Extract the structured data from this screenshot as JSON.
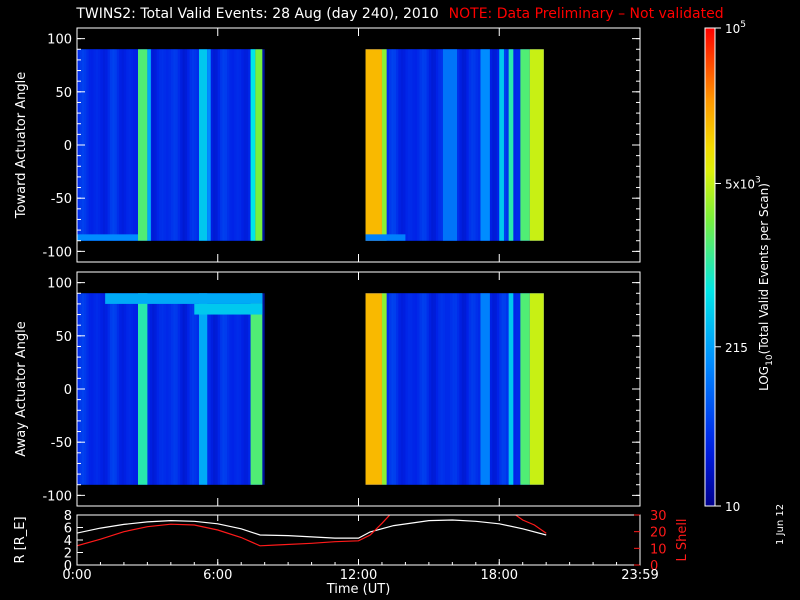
{
  "title": {
    "main": "TWINS2: Total Valid Events: 28 Aug (day 240), 2010",
    "note": "NOTE: Data Preliminary – Not validated"
  },
  "stamp": "1 Jun 12",
  "colors": {
    "background": "#000000",
    "axis": "#ffffff",
    "note": "#ff0000",
    "lshell": "#ff1a1a",
    "radius": "#ffffff"
  },
  "chart_data": [
    {
      "type": "heatmap",
      "panel": "top",
      "ylabel": "Toward Actuator Angle",
      "xlim": [
        0,
        24
      ],
      "ylim": [
        -110,
        110
      ],
      "yticks": [
        100,
        50,
        0,
        -50,
        -100
      ],
      "data_extent": {
        "x": [
          [
            0,
            7.9
          ],
          [
            12.3,
            19.9
          ]
        ],
        "y": [
          -90,
          90
        ]
      },
      "base_level": 0.14,
      "stripes": [
        {
          "x0": 2.6,
          "x1": 3.0,
          "level": 0.55
        },
        {
          "x0": 3.0,
          "x1": 3.15,
          "level": 0.35
        },
        {
          "x0": 5.2,
          "x1": 5.55,
          "level": 0.4
        },
        {
          "x0": 5.55,
          "x1": 5.7,
          "level": 0.3
        },
        {
          "x0": 7.4,
          "x1": 7.6,
          "level": 0.45
        },
        {
          "x0": 7.6,
          "x1": 7.9,
          "level": 0.6
        },
        {
          "x0": 12.3,
          "x1": 13.0,
          "level": 0.8
        },
        {
          "x0": 13.0,
          "x1": 13.2,
          "level": 0.62
        },
        {
          "x0": 15.6,
          "x1": 16.2,
          "level": 0.26
        },
        {
          "x0": 17.2,
          "x1": 17.6,
          "level": 0.3
        },
        {
          "x0": 18.0,
          "x1": 18.2,
          "level": 0.4
        },
        {
          "x0": 18.4,
          "x1": 18.6,
          "level": 0.5
        },
        {
          "x0": 18.9,
          "x1": 19.3,
          "level": 0.55
        },
        {
          "x0": 19.3,
          "x1": 19.9,
          "level": 0.68
        }
      ],
      "bands": [
        {
          "y0": -90,
          "y1": -84,
          "x0": 0,
          "x1": 2.6,
          "level": 0.3
        },
        {
          "y0": -90,
          "y1": -84,
          "x0": 12.3,
          "x1": 14.0,
          "level": 0.28
        }
      ]
    },
    {
      "type": "heatmap",
      "panel": "middle",
      "ylabel": "Away Actuator Angle",
      "xlim": [
        0,
        24
      ],
      "ylim": [
        -110,
        110
      ],
      "yticks": [
        100,
        50,
        0,
        -50,
        -100
      ],
      "data_extent": {
        "x": [
          [
            0,
            7.9
          ],
          [
            12.3,
            19.9
          ]
        ],
        "y": [
          -90,
          90
        ]
      },
      "base_level": 0.14,
      "stripes": [
        {
          "x0": 2.6,
          "x1": 3.0,
          "level": 0.5
        },
        {
          "x0": 5.2,
          "x1": 5.55,
          "level": 0.35
        },
        {
          "x0": 7.4,
          "x1": 7.9,
          "level": 0.55
        },
        {
          "x0": 12.3,
          "x1": 13.0,
          "level": 0.8
        },
        {
          "x0": 13.0,
          "x1": 13.2,
          "level": 0.62
        },
        {
          "x0": 17.2,
          "x1": 17.6,
          "level": 0.28
        },
        {
          "x0": 18.4,
          "x1": 18.6,
          "level": 0.4
        },
        {
          "x0": 18.9,
          "x1": 19.3,
          "level": 0.55
        },
        {
          "x0": 19.3,
          "x1": 19.9,
          "level": 0.68
        }
      ],
      "bands": [
        {
          "y0": 80,
          "y1": 90,
          "x0": 1.2,
          "x1": 7.9,
          "level": 0.35
        },
        {
          "y0": 70,
          "y1": 80,
          "x0": 5.0,
          "x1": 7.9,
          "level": 0.4
        }
      ]
    },
    {
      "type": "line",
      "panel": "bottom",
      "xlabel": "Time (UT)",
      "ylabel_left": "R [R_E]",
      "ylabel_right": "L Shell",
      "xlim": [
        0,
        24
      ],
      "xticks": [
        "0:00",
        "6:00",
        "12:00",
        "18:00",
        "23:59"
      ],
      "xtick_values": [
        0,
        6,
        12,
        18,
        24
      ],
      "ylim_left": [
        0,
        8
      ],
      "yticks_left": [
        0,
        2,
        4,
        6,
        8
      ],
      "ylim_right": [
        0,
        30
      ],
      "yticks_right": [
        0,
        10,
        20,
        30
      ],
      "series": [
        {
          "axis": "left",
          "x": [
            0,
            1,
            2,
            3,
            4,
            5,
            6,
            7,
            7.8,
            9,
            10,
            11,
            12,
            12.5,
            13.5,
            15,
            16,
            17,
            18,
            19,
            20
          ],
          "y": [
            5.1,
            5.9,
            6.5,
            6.9,
            7.1,
            7.0,
            6.6,
            5.8,
            4.8,
            4.7,
            4.5,
            4.3,
            4.3,
            5.3,
            6.3,
            7.1,
            7.2,
            7.0,
            6.6,
            5.8,
            4.8
          ]
        },
        {
          "axis": "right",
          "x": [
            0,
            1,
            2,
            3,
            4,
            5,
            6,
            7,
            7.8,
            8.5,
            10,
            11,
            12,
            12.5,
            13.0,
            13.4,
            18.6,
            19,
            19.5,
            20
          ],
          "y": [
            11.5,
            15.5,
            20.0,
            23.0,
            24.5,
            24.0,
            21.0,
            16.5,
            11.5,
            12.0,
            13.0,
            14.0,
            14.5,
            18.0,
            25.0,
            31.0,
            31.0,
            27.0,
            24.0,
            19.0
          ]
        }
      ]
    },
    {
      "type": "colorbar",
      "label": "LOG10(Total Valid Events per Scan)",
      "label_parts": [
        "LOG",
        "10",
        "(Total Valid Events per Scan)"
      ],
      "scale": "log",
      "range": [
        10,
        100000
      ],
      "ticks": [
        {
          "label": "10",
          "value": 10
        },
        {
          "label": "215",
          "value": 215
        },
        {
          "label": "5x10^3",
          "value": 5000
        },
        {
          "label": "10^5",
          "value": 100000
        }
      ]
    }
  ]
}
